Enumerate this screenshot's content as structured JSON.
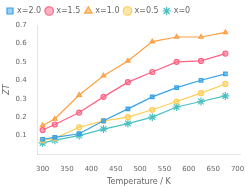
{
  "chart_data": {
    "type": "line",
    "xlabel": "Temperature / K",
    "ylabel": "ZT",
    "x": [
      300,
      325,
      375,
      425,
      475,
      525,
      575,
      625,
      675
    ],
    "series": [
      {
        "name": "x=2.0",
        "marker": "square",
        "values": [
          0.08,
          0.09,
          0.11,
          0.18,
          0.245,
          0.31,
          0.36,
          0.4,
          0.435
        ]
      },
      {
        "name": "x=1.5",
        "marker": "circle",
        "values": [
          0.13,
          0.16,
          0.225,
          0.31,
          0.39,
          0.445,
          0.5,
          0.505,
          0.545
        ]
      },
      {
        "name": "x=1.0",
        "marker": "triangle",
        "values": [
          0.155,
          0.19,
          0.32,
          0.425,
          0.505,
          0.61,
          0.635,
          0.635,
          0.66
        ]
      },
      {
        "name": "x=0.5",
        "marker": "circle",
        "values": [
          0.075,
          0.085,
          0.145,
          0.18,
          0.2,
          0.24,
          0.285,
          0.33,
          0.38
        ]
      },
      {
        "name": "x=0",
        "marker": "star",
        "values": [
          0.06,
          0.075,
          0.1,
          0.135,
          0.165,
          0.2,
          0.255,
          0.285,
          0.315
        ]
      }
    ],
    "xlim": [
      290,
      705
    ],
    "ylim": [
      0,
      0.7
    ],
    "xticks": [
      300,
      350,
      400,
      450,
      500,
      550,
      600,
      650,
      700
    ],
    "yticks": [
      0.1,
      0.2,
      0.3,
      0.4,
      0.5,
      0.6,
      0.7
    ],
    "grid": false,
    "legend": "upper left"
  }
}
